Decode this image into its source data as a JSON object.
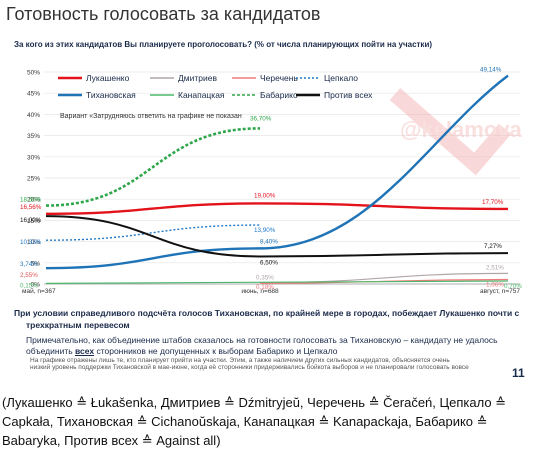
{
  "page": {
    "title": "Готовность голосовать за кандидатов",
    "caption": "(Лукашенко ≙ Łukašenka, Дмитриев ≙ Dźmitryjeŭ, Черечень ≙ Čeračeń, Цепкало ≙ Capkała, Тихановская ≙ Cichanoŭskaja, Канапацкая ≙ Kanapackaja, Бабарико ≙ Babaryka, Против всех ≙ Against all)"
  },
  "slide": {
    "question": "За кого из этих кандидатов Вы планируете проголосовать? (% от числа планирующих пойти на участки)",
    "variant_note": "Вариант «Затрудняюсь ответить на графике не показан",
    "watermark": "@kelamova",
    "headline_1": "При условии справедливого подсчёта голосов Тихановская, по крайней мере в городах, побеждает Лукашенко почти с",
    "headline_2": "трехкратным перевесом",
    "note_1a": "Примечательно, как объединение штабов сказалось на готовности голосовать за Тихановскую – кандидату не удалось",
    "note_1b_pre": "объединить ",
    "note_1b_u": "всех",
    "note_1b_post": " сторонников не допущенных к выборам Бабарико и Цепкало",
    "footnote": "На графике отражены лишь те, кто планирует прийти на участки. Этим, а также наличием других сильных кандидатов, объясняется очень низкий уровень поддержки Тихановской в мае-июне, когда её сторонники придерживались бойкота выборов и не планировали голосовать вовсе",
    "page_number": "11"
  },
  "chart_data": {
    "type": "line",
    "x": [
      "май, n=367",
      "июнь, n=688",
      "август, n=757"
    ],
    "ylim": [
      0,
      50
    ],
    "yticks": [
      "0%",
      "5%",
      "10%",
      "15%",
      "20%",
      "25%",
      "30%",
      "35%",
      "40%",
      "45%",
      "50%"
    ],
    "legend_position": "top-left",
    "colors": {
      "lukashenko": "#e3121b",
      "dmitriev": "#b0a6a6",
      "cherechen": "#f07a7a",
      "tsepkalo": "#1f78c8",
      "tikhanovskaya": "#1f73b7",
      "kanapatskaya": "#4db86b",
      "babariko": "#2ea64a",
      "against": "#111111"
    },
    "series": [
      {
        "key": "lukashenko",
        "name": "Лукашенко",
        "values": [
          16.56,
          19.0,
          17.7
        ],
        "labels": [
          "16,56%",
          "19,00%",
          "17,70%"
        ]
      },
      {
        "key": "dmitriev",
        "name": "Дмитриев",
        "values": [
          null,
          0.35,
          2.51
        ],
        "labels": [
          "",
          "0,35%",
          "2,51%"
        ]
      },
      {
        "key": "cherechen",
        "name": "Черечень",
        "values": [
          null,
          0.18,
          1.06
        ],
        "labels": [
          "",
          "0,18%",
          "1,06%"
        ]
      },
      {
        "key": "tsepkalo",
        "name": "Цепкало",
        "values": [
          10.33,
          13.9,
          null
        ],
        "labels": [
          "10,33%",
          "13,90%",
          ""
        ]
      },
      {
        "key": "tikhanovskaya",
        "name": "Тихановская",
        "values": [
          3.74,
          8.4,
          49.14
        ],
        "labels": [
          "3,74%",
          "8,40%",
          "49,14%"
        ]
      },
      {
        "key": "kanapatskaya",
        "name": "Канапацкая",
        "values": [
          0.15,
          null,
          0.7
        ],
        "labels": [
          "0,15%",
          "",
          "0,70%"
        ]
      },
      {
        "key": "babariko",
        "name": "Бабарико",
        "values": [
          18.5,
          36.7,
          null
        ],
        "labels": [
          "18,50%",
          "36,70%",
          ""
        ]
      },
      {
        "key": "against",
        "name": "Против всех",
        "values": [
          16.0,
          6.5,
          7.27
        ],
        "labels": [
          "16,00%",
          "6,50%",
          "7,27%"
        ]
      }
    ],
    "extra_labels": [
      "2,55%"
    ]
  }
}
